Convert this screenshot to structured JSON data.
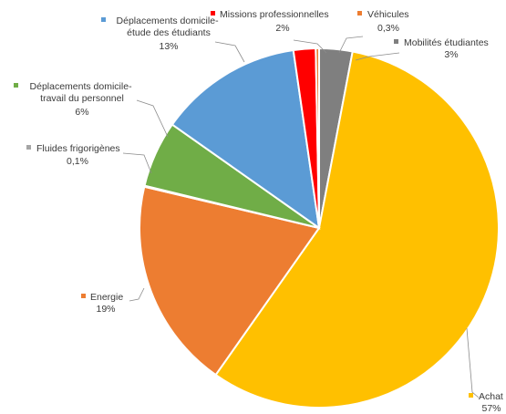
{
  "chart_data": {
    "type": "pie",
    "title": "",
    "start_angle_deg": 0,
    "direction": "clockwise",
    "slices": [
      {
        "label": "Mobilités étudiantes",
        "value": 3,
        "display": "3%",
        "color": "#7f7f7f"
      },
      {
        "label": "Achat",
        "value": 57,
        "display": "57%",
        "color": "#ffc000"
      },
      {
        "label": "Energie",
        "value": 19,
        "display": "19%",
        "color": "#ed7d31"
      },
      {
        "label": "Fluides frigorigènes",
        "value": 0.1,
        "display": "0,1%",
        "color": "#a5a5a5"
      },
      {
        "label": "Déplacements domicile-travail du personnel",
        "value": 6,
        "display": "6%",
        "color": "#70ad47"
      },
      {
        "label": "Déplacements domicile-étude des étudiants",
        "value": 13,
        "display": "13%",
        "color": "#5b9bd5"
      },
      {
        "label": "Missions professionnelles",
        "value": 2,
        "display": "2%",
        "color": "#ff0000"
      },
      {
        "label": "Véhicules",
        "value": 0.3,
        "display": "0,3%",
        "color": "#ed7d31"
      }
    ]
  }
}
